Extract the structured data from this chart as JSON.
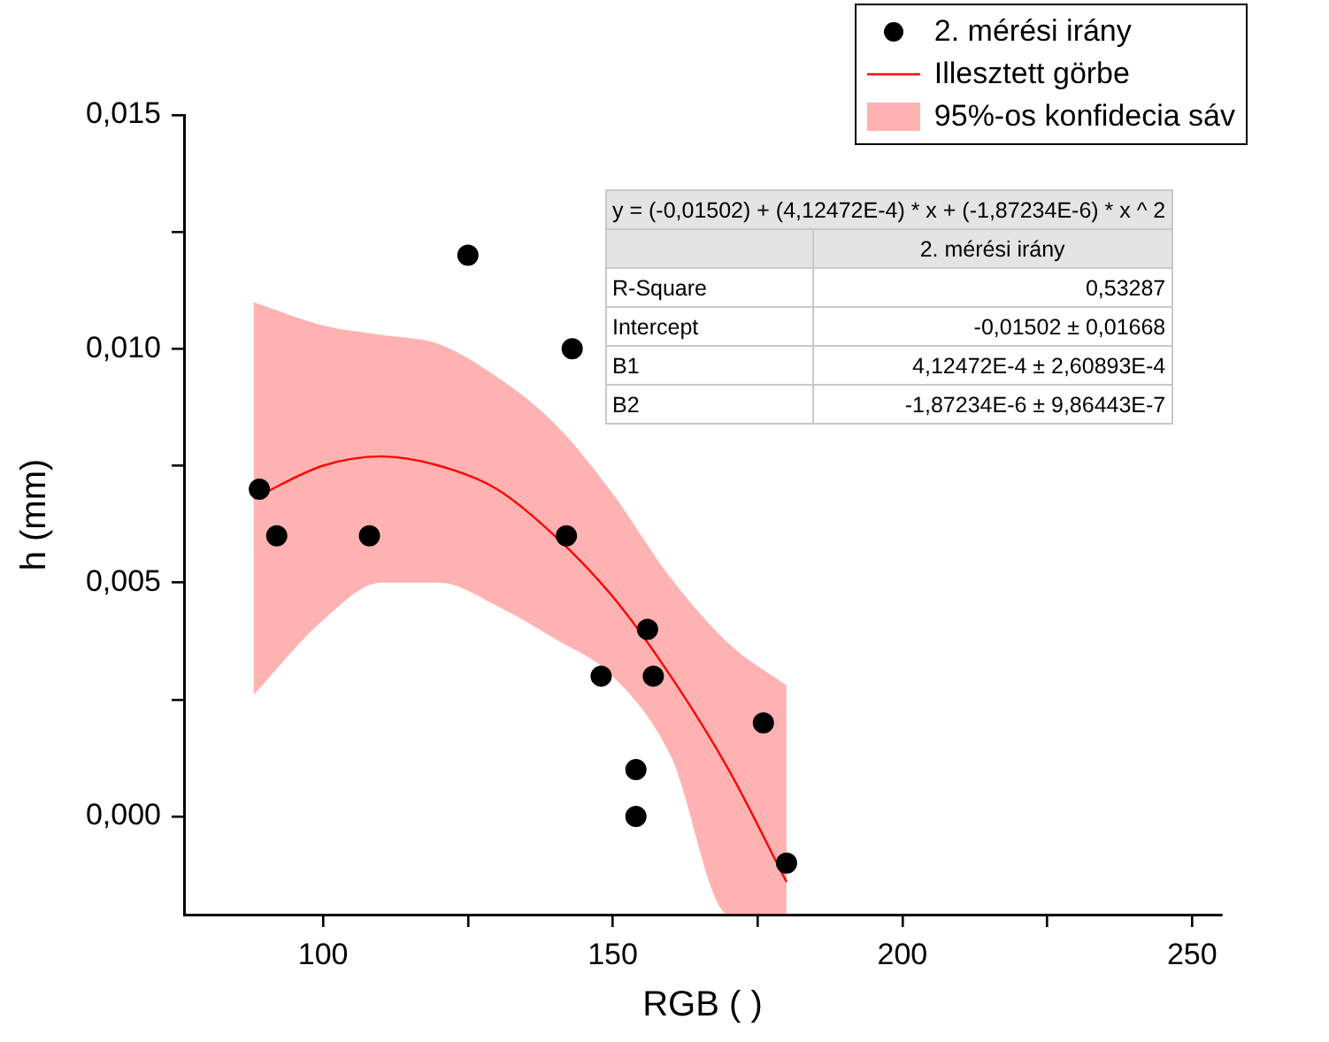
{
  "chart_data": {
    "type": "scatter",
    "xlabel": "RGB ( )",
    "ylabel": "h (mm)",
    "xlim": [
      76,
      255
    ],
    "ylim": [
      -0.0021,
      0.015
    ],
    "xticks": [
      100,
      {
        "value": 125,
        "label": null
      },
      150,
      {
        "value": 175,
        "label": null
      },
      200,
      {
        "value": 225,
        "label": null
      },
      250
    ],
    "yticks": [
      {
        "value": 0,
        "label": "0,000"
      },
      {
        "value": 0.0025,
        "label": null
      },
      {
        "value": 0.005,
        "label": "0,005"
      },
      {
        "value": 0.0075,
        "label": null
      },
      {
        "value": 0.01,
        "label": "0,010"
      },
      {
        "value": 0.0125,
        "label": null
      },
      {
        "value": 0.015,
        "label": "0,015"
      }
    ],
    "grid": false,
    "legend": "top right",
    "series": [
      {
        "name": "2. mérési irány",
        "color": "#000000",
        "marker": "circle",
        "x": [
          89,
          92,
          108,
          125,
          142,
          143,
          148,
          154,
          154,
          156,
          157,
          176,
          180
        ],
        "values": [
          0.007,
          0.006,
          0.006,
          0.012,
          0.006,
          0.01,
          0.003,
          0.001,
          0,
          0.004,
          0.003,
          0.002,
          -0.001
        ]
      },
      {
        "type": "line",
        "name": "Illesztett görbe",
        "color": "#ff0000",
        "marker": "none",
        "x": [
          88,
          100,
          110,
          120,
          130,
          140,
          150,
          160,
          170,
          180
        ],
        "values": [
          0.0068,
          0.0075,
          0.0077,
          0.0075,
          0.007,
          0.006,
          0.0047,
          0.003,
          0.001,
          -0.0014
        ],
        "upper": [
          0.011,
          0.0105,
          0.0103,
          0.0101,
          0.0094,
          0.0084,
          0.0069,
          0.0051,
          0.0037,
          0.0028
        ],
        "lower": [
          0.0026,
          0.0042,
          0.005,
          0.005,
          0.0045,
          0.0038,
          0.003,
          0.0013,
          -0.0021,
          -0.0021
        ]
      }
    ],
    "annotations": [
      "95%-os konfidecia sáv",
      "y =  (-0,01502) + (4,12472E-4) * x + (-1,87234E-6) * x ^ 2",
      "2. mérési irány",
      "R-Square",
      "0,53287",
      "Intercept",
      "-0,01502 ± 0,01668",
      "B1",
      "4,12472E-4 ± 2,60893E-4",
      "B2",
      "-1,87234E-6 ± 9,86443E-7"
    ]
  }
}
